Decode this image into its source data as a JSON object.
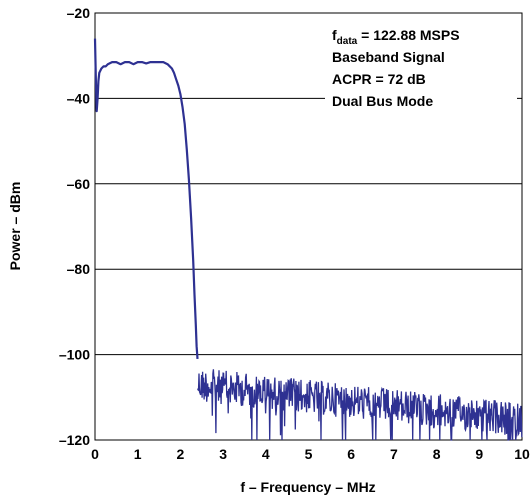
{
  "chart_data": {
    "type": "line",
    "title": "",
    "xlabel": "f – Frequency – MHz",
    "ylabel": "Power – dBm",
    "xlim": [
      0,
      10
    ],
    "ylim": [
      -120,
      -20
    ],
    "xticks": [
      "0",
      "1",
      "2",
      "3",
      "4",
      "5",
      "6",
      "7",
      "8",
      "9",
      "10"
    ],
    "yticks": [
      "–20",
      "–40",
      "–60",
      "–80",
      "–100",
      "–120"
    ],
    "grid": "horizontal",
    "line_color": "#2e3192",
    "annotations": {
      "fdata_prefix": "f",
      "fdata_subscript": "data",
      "fdata_value": " = 122.88 MSPS",
      "line2": "Baseband Signal",
      "line3": "ACPR = 72 dB",
      "line4": "Dual Bus Mode"
    },
    "series": [
      {
        "x": [
          0.0,
          0.02,
          0.04,
          0.06,
          0.08,
          0.1,
          0.15,
          0.2,
          0.25,
          0.3,
          0.4,
          0.5,
          0.6,
          0.7,
          0.8,
          0.9,
          1.0,
          1.1,
          1.2,
          1.3,
          1.4,
          1.5,
          1.6,
          1.7,
          1.8,
          1.85,
          1.9,
          1.95,
          2.0,
          2.05,
          2.1,
          2.15,
          2.2,
          2.25,
          2.3,
          2.33,
          2.36,
          2.38,
          2.4
        ],
        "y": [
          -26,
          -36,
          -43,
          -40,
          -36,
          -34,
          -33,
          -32.5,
          -32.5,
          -32,
          -31.5,
          -31.5,
          -32,
          -31.5,
          -31.5,
          -32,
          -31.5,
          -31.5,
          -31.8,
          -31.5,
          -31.5,
          -31.5,
          -31.5,
          -32,
          -33,
          -34,
          -35.5,
          -37,
          -39,
          -42,
          -46,
          -52,
          -59,
          -68,
          -78,
          -86,
          -93,
          -98,
          -101
        ]
      }
    ]
  }
}
